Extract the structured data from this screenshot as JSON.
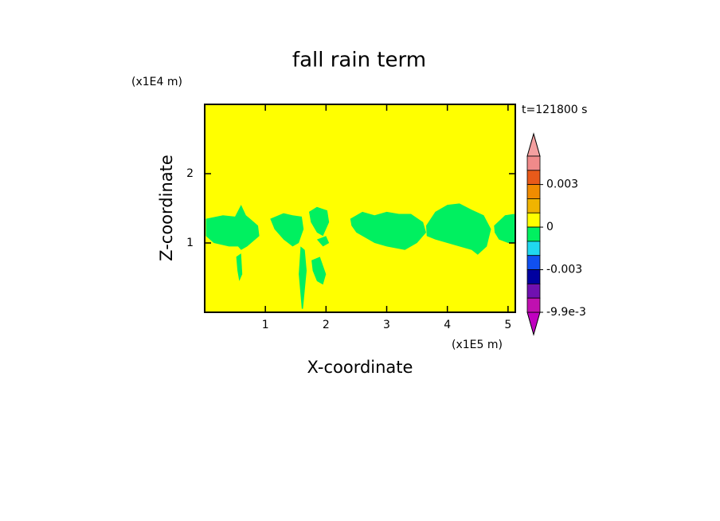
{
  "chart_data": {
    "type": "filled-contour",
    "title": "fall rain term",
    "x_label": "X-coordinate",
    "y_label": "Z-coordinate",
    "x_unit": "(x1E5 m)",
    "y_unit": "(x1E4 m)",
    "time_label": "t=121800 s",
    "xlim": [
      0,
      5.12
    ],
    "ylim": [
      0,
      3
    ],
    "xticks": [
      1,
      2,
      3,
      4,
      5
    ],
    "yticks": [
      1,
      2
    ],
    "background_color": "#ffff00",
    "region_color": "#00f060",
    "regions": [
      {
        "x": [
          0.02,
          0.3,
          0.5,
          0.6,
          0.68,
          0.75,
          0.88,
          0.9,
          0.7,
          0.6,
          0.55,
          0.4,
          0.15,
          0.02
        ],
        "y": [
          1.35,
          1.4,
          1.38,
          1.55,
          1.4,
          1.35,
          1.25,
          1.1,
          0.95,
          0.9,
          0.95,
          0.95,
          1.0,
          1.1
        ]
      },
      {
        "x": [
          0.52,
          0.6,
          0.62,
          0.57,
          0.54
        ],
        "y": [
          0.8,
          0.85,
          0.55,
          0.45,
          0.6
        ]
      },
      {
        "x": [
          1.08,
          1.3,
          1.45,
          1.6,
          1.63,
          1.55,
          1.45,
          1.3,
          1.15
        ],
        "y": [
          1.35,
          1.43,
          1.4,
          1.38,
          1.2,
          1.0,
          0.95,
          1.05,
          1.2
        ]
      },
      {
        "x": [
          1.58,
          1.65,
          1.68,
          1.62,
          1.6,
          1.55
        ],
        "y": [
          0.95,
          0.9,
          0.6,
          0.05,
          0.05,
          0.55
        ]
      },
      {
        "x": [
          1.76,
          1.9,
          2.0,
          1.95,
          1.85,
          1.78
        ],
        "y": [
          0.75,
          0.8,
          0.55,
          0.4,
          0.45,
          0.6
        ]
      },
      {
        "x": [
          1.72,
          1.85,
          2.02,
          2.05,
          1.95,
          1.85,
          1.75
        ],
        "y": [
          1.45,
          1.52,
          1.47,
          1.3,
          1.1,
          1.15,
          1.3
        ]
      },
      {
        "x": [
          1.85,
          2.0,
          2.05,
          1.95
        ],
        "y": [
          1.05,
          1.1,
          1.0,
          0.95
        ]
      },
      {
        "x": [
          2.4,
          2.6,
          2.8,
          3.0,
          3.2,
          3.4,
          3.6,
          3.65,
          3.5,
          3.3,
          3.0,
          2.8,
          2.5,
          2.42
        ],
        "y": [
          1.35,
          1.45,
          1.4,
          1.45,
          1.42,
          1.42,
          1.3,
          1.15,
          1.0,
          0.9,
          0.95,
          1.0,
          1.15,
          1.25
        ]
      },
      {
        "x": [
          3.65,
          3.8,
          4.0,
          4.2,
          4.4,
          4.6,
          4.72,
          4.65,
          4.5,
          4.4,
          4.2,
          4.0,
          3.8,
          3.66
        ],
        "y": [
          1.25,
          1.45,
          1.55,
          1.57,
          1.48,
          1.4,
          1.2,
          0.95,
          0.83,
          0.9,
          0.95,
          1.0,
          1.05,
          1.1
        ]
      },
      {
        "x": [
          4.77,
          4.95,
          5.1,
          5.12,
          5.12,
          5.0,
          4.85,
          4.78
        ],
        "y": [
          1.25,
          1.4,
          1.42,
          1.4,
          1.0,
          1.0,
          1.05,
          1.15
        ]
      }
    ],
    "colorbar": {
      "levels": [
        0.005,
        0.004,
        0.003,
        0.002,
        0.001,
        0,
        -0.001,
        -0.002,
        -0.003,
        -0.004,
        -0.007,
        -0.0099
      ],
      "colors": [
        "#f08a8a",
        "#e85a1a",
        "#f08c00",
        "#f0b400",
        "#ffff00",
        "#00f060",
        "#20d8f0",
        "#1050f0",
        "#0000a0",
        "#7010b0",
        "#c010b0"
      ],
      "over_color": "#f4a0a0",
      "under_color": "#c000c0",
      "ticks": [
        0.003,
        0,
        -0.003,
        {
          "value": -0.0099,
          "label": "-9.9e-3"
        }
      ]
    }
  }
}
